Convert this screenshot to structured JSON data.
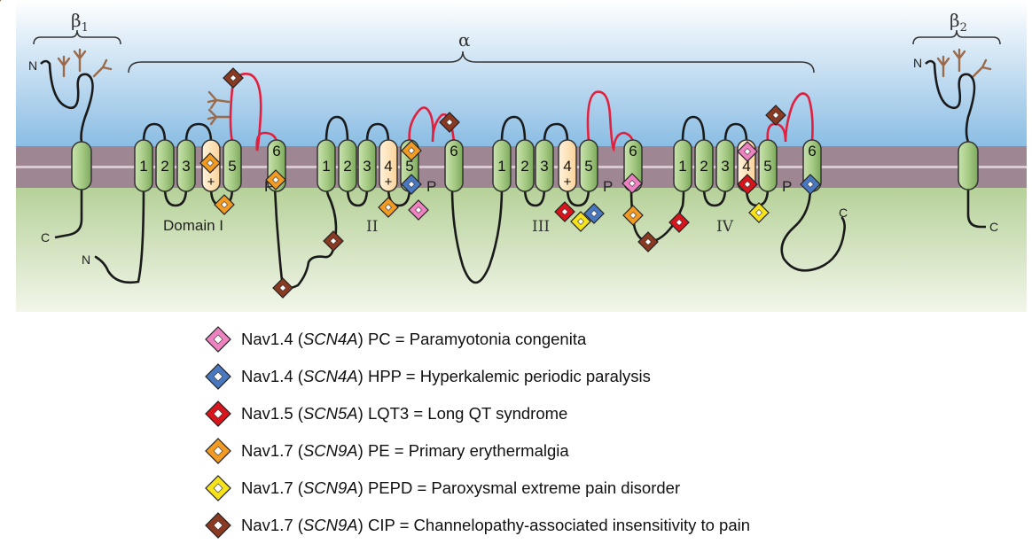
{
  "labels": {
    "beta1_sym": "β",
    "beta1_sub": "1",
    "beta2_sym": "β",
    "beta2_sub": "2",
    "alpha": "α",
    "n_terminus": "N",
    "c_terminus": "C",
    "pore": "P",
    "plus": "+",
    "domain_1": "Domain I",
    "domain_2": "II",
    "domain_3": "III",
    "domain_4": "IV",
    "segments": [
      "1",
      "2",
      "3",
      "4",
      "5",
      "6"
    ]
  },
  "colors": {
    "extracellular": "#8bbde4",
    "membrane": "#9e8792",
    "intracellular": "#b6d199",
    "helix": "#a7cc86",
    "voltage_sensor": "#fde0b0",
    "pore_loop": "#e0203e",
    "glycosylation": "#9a6a4a"
  },
  "legend": [
    {
      "icon": "pink-diamond-icon",
      "color": "#ee82c0",
      "channel": "Nav1.4",
      "gene": "SCN4A",
      "rest": "PC = Paramyotonia congenita"
    },
    {
      "icon": "blue-diamond-icon",
      "color": "#4a78c0",
      "channel": "Nav1.4",
      "gene": "SCN4A",
      "rest": "HPP = Hyperkalemic periodic paralysis"
    },
    {
      "icon": "red-diamond-icon",
      "color": "#d8141c",
      "channel": "Nav1.5",
      "gene": "SCN5A",
      "rest": "LQT3 = Long QT syndrome"
    },
    {
      "icon": "orange-diamond-icon",
      "color": "#f29b22",
      "channel": "Nav1.7",
      "gene": "SCN9A",
      "rest": "PE = Primary erythermalgia"
    },
    {
      "icon": "yellow-diamond-icon",
      "color": "#f6e21a",
      "channel": "Nav1.7",
      "gene": "SCN9A",
      "rest": "PEPD = Paroxysmal extreme pain disorder"
    },
    {
      "icon": "brown-diamond-icon",
      "color": "#8a3a22",
      "channel": "Nav1.7",
      "gene": "SCN9A",
      "rest": "CIP = Channelopathy-associated insensitivity to pain"
    }
  ]
}
